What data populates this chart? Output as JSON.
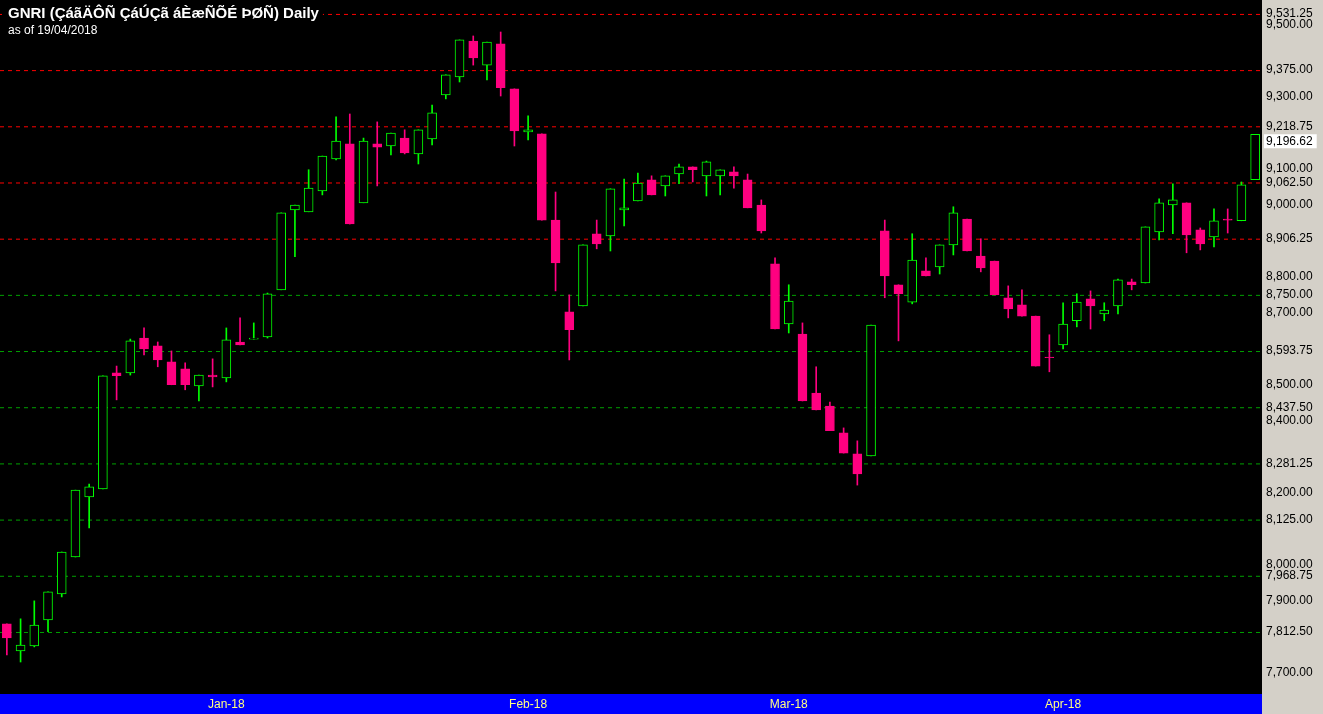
{
  "chart_data": {
    "type": "candlestick",
    "title": "GNRI (ÇáãÄÔÑ ÇáÚÇã áÈæÑÕÉ ÞØÑ) Daily",
    "subtitle": "as of 19/04/2018",
    "categories": [
      null,
      null,
      null,
      null,
      null,
      null,
      null,
      null,
      null,
      null,
      null,
      null,
      null,
      null,
      null,
      null,
      "Jan-18",
      null,
      null,
      null,
      null,
      null,
      null,
      null,
      null,
      null,
      null,
      null,
      null,
      null,
      null,
      null,
      null,
      null,
      null,
      null,
      null,
      null,
      "Feb-18",
      null,
      null,
      null,
      null,
      null,
      null,
      null,
      null,
      null,
      null,
      null,
      null,
      null,
      null,
      null,
      null,
      null,
      null,
      "Mar-18",
      null,
      null,
      null,
      null,
      null,
      null,
      null,
      null,
      null,
      null,
      null,
      null,
      null,
      null,
      null,
      null,
      null,
      null,
      null,
      "Apr-18",
      null,
      null,
      null,
      null,
      null,
      null,
      null,
      null,
      null,
      null,
      null,
      null,
      null,
      null
    ],
    "ohlc": [
      [
        7835,
        7835,
        7749,
        7796
      ],
      [
        7760,
        7849,
        7729,
        7776
      ],
      [
        7774,
        7899,
        7771,
        7832
      ],
      [
        7846,
        7924,
        7813,
        7924
      ],
      [
        7918,
        8035,
        7910,
        8035
      ],
      [
        8021,
        8207,
        8021,
        8207
      ],
      [
        8188,
        8224,
        8102,
        8216
      ],
      [
        8210,
        8525,
        8210,
        8525
      ],
      [
        8533,
        8552,
        8458,
        8525
      ],
      [
        8533,
        8627,
        8527,
        8622
      ],
      [
        8630,
        8658,
        8583,
        8600
      ],
      [
        8608,
        8619,
        8550,
        8569
      ],
      [
        8564,
        8594,
        8500,
        8500
      ],
      [
        8544,
        8561,
        8486,
        8500
      ],
      [
        8497,
        8527,
        8455,
        8527
      ],
      [
        8527,
        8572,
        8494,
        8522
      ],
      [
        8519,
        8658,
        8508,
        8625
      ],
      [
        8619,
        8686,
        8611,
        8611
      ],
      [
        8627,
        8672,
        8627,
        8630
      ],
      [
        8633,
        8755,
        8630,
        8753
      ],
      [
        8764,
        8978,
        8764,
        8978
      ],
      [
        8986,
        9000,
        8856,
        9000
      ],
      [
        8981,
        9098,
        8981,
        9047
      ],
      [
        9039,
        9136,
        9028,
        9136
      ],
      [
        9128,
        9245,
        9125,
        9178
      ],
      [
        9170,
        9253,
        8947,
        8947
      ],
      [
        9006,
        9186,
        9006,
        9178
      ],
      [
        9170,
        9231,
        9053,
        9161
      ],
      [
        9164,
        9200,
        9139,
        9200
      ],
      [
        9186,
        9209,
        9142,
        9145
      ],
      [
        9142,
        9209,
        9114,
        9209
      ],
      [
        9184,
        9278,
        9167,
        9256
      ],
      [
        9306,
        9362,
        9295,
        9362
      ],
      [
        9356,
        9459,
        9342,
        9459
      ],
      [
        9456,
        9470,
        9389,
        9409
      ],
      [
        9389,
        9453,
        9348,
        9453
      ],
      [
        9448,
        9481,
        9303,
        9326
      ],
      [
        9323,
        9323,
        9164,
        9206
      ],
      [
        9203,
        9248,
        9181,
        9209
      ],
      [
        9198,
        9198,
        8958,
        8958
      ],
      [
        8958,
        9036,
        8761,
        8839
      ],
      [
        8703,
        8750,
        8569,
        8653
      ],
      [
        8719,
        8889,
        8719,
        8889
      ],
      [
        8920,
        8958,
        8878,
        8892
      ],
      [
        8914,
        9045,
        8872,
        9045
      ],
      [
        8986,
        9072,
        8942,
        8992
      ],
      [
        9011,
        9089,
        9011,
        9061
      ],
      [
        9070,
        9081,
        9028,
        9028
      ],
      [
        9053,
        9081,
        9025,
        9081
      ],
      [
        9086,
        9114,
        9059,
        9106
      ],
      [
        9106,
        9106,
        9064,
        9098
      ],
      [
        9081,
        9122,
        9025,
        9120
      ],
      [
        9081,
        9098,
        9028,
        9098
      ],
      [
        9092,
        9106,
        9047,
        9081
      ],
      [
        9070,
        9086,
        8992,
        8992
      ],
      [
        9000,
        9014,
        8922,
        8928
      ],
      [
        8836,
        8853,
        8655,
        8655
      ],
      [
        8669,
        8778,
        8644,
        8733
      ],
      [
        8641,
        8672,
        8455,
        8455
      ],
      [
        8477,
        8550,
        8430,
        8430
      ],
      [
        8441,
        8452,
        8372,
        8372
      ],
      [
        8366,
        8380,
        8310,
        8310
      ],
      [
        8308,
        8344,
        8221,
        8252
      ],
      [
        8302,
        8666,
        8302,
        8666
      ],
      [
        8928,
        8958,
        8742,
        8803
      ],
      [
        8778,
        8778,
        8622,
        8753
      ],
      [
        8730,
        8920,
        8725,
        8847
      ],
      [
        8817,
        8853,
        8803,
        8803
      ],
      [
        8828,
        8889,
        8808,
        8889
      ],
      [
        8889,
        8995,
        8861,
        8978
      ],
      [
        8961,
        8961,
        8872,
        8872
      ],
      [
        8858,
        8906,
        8814,
        8825
      ],
      [
        8844,
        8844,
        8750,
        8750
      ],
      [
        8742,
        8775,
        8686,
        8711
      ],
      [
        8722,
        8764,
        8691,
        8691
      ],
      [
        8691,
        8691,
        8552,
        8552
      ],
      [
        8577,
        8639,
        8536,
        8575
      ],
      [
        8611,
        8728,
        8600,
        8669
      ],
      [
        8678,
        8753,
        8661,
        8730
      ],
      [
        8739,
        8761,
        8655,
        8719
      ],
      [
        8697,
        8728,
        8678,
        8708
      ],
      [
        8719,
        8794,
        8697,
        8792
      ],
      [
        8786,
        8794,
        8764,
        8778
      ],
      [
        8783,
        8939,
        8783,
        8939
      ],
      [
        8925,
        9017,
        8903,
        9006
      ],
      [
        9000,
        9059,
        8920,
        9014
      ],
      [
        9006,
        9006,
        8867,
        8917
      ],
      [
        8931,
        8936,
        8875,
        8892
      ],
      [
        8911,
        8989,
        8883,
        8956
      ],
      [
        8961,
        8989,
        8922,
        8958
      ],
      [
        8956,
        9064,
        8956,
        9056
      ],
      [
        9070,
        9196.62,
        9070,
        9196.62
      ]
    ],
    "colors": [
      "#ff0080",
      "#00ff00",
      "#00ff00",
      "#00ff00",
      "#00ff00",
      "#00ff00",
      "#00ff00",
      "#00ff00",
      "#ff0080",
      "#00ff00",
      "#ff0080",
      "#ff0080",
      "#ff0080",
      "#ff0080",
      "#00ff00",
      "#ff0080",
      "#00ff00",
      "#ff0080",
      "#00ff00",
      "#00ff00",
      "#00ff00",
      "#00ff00",
      "#00ff00",
      "#00ff00",
      "#00ff00",
      "#ff0080",
      "#00ff00",
      "#ff0080",
      "#00ff00",
      "#ff0080",
      "#00ff00",
      "#00ff00",
      "#00ff00",
      "#00ff00",
      "#ff0080",
      "#00ff00",
      "#ff0080",
      "#ff0080",
      "#00ff00",
      "#ff0080",
      "#ff0080",
      "#ff0080",
      "#00ff00",
      "#ff0080",
      "#00ff00",
      "#00ff00",
      "#00ff00",
      "#ff0080",
      "#00ff00",
      "#00ff00",
      "#ff0080",
      "#00ff00",
      "#00ff00",
      "#ff0080",
      "#ff0080",
      "#ff0080",
      "#ff0080",
      "#00ff00",
      "#ff0080",
      "#ff0080",
      "#ff0080",
      "#ff0080",
      "#ff0080",
      "#00ff00",
      "#ff0080",
      "#ff0080",
      "#00ff00",
      "#ff0080",
      "#00ff00",
      "#00ff00",
      "#ff0080",
      "#ff0080",
      "#ff0080",
      "#ff0080",
      "#ff0080",
      "#ff0080",
      "#ff0080",
      "#00ff00",
      "#00ff00",
      "#ff0080",
      "#00ff00",
      "#00ff00",
      "#ff0080",
      "#00ff00",
      "#00ff00",
      "#00ff00",
      "#ff0080",
      "#ff0080",
      "#00ff00",
      "#ff0080",
      "#00ff00",
      "#00ff00"
    ],
    "ylim": [
      7640,
      9570
    ],
    "yticks": [
      {
        "value": 7700,
        "label": "7,700.00"
      },
      {
        "value": 7900,
        "label": "7,900.00"
      },
      {
        "value": 8000,
        "label": "8,000.00"
      },
      {
        "value": 8200,
        "label": "8,200.00"
      },
      {
        "value": 8400,
        "label": "8,400.00"
      },
      {
        "value": 8500,
        "label": "8,500.00"
      },
      {
        "value": 8700,
        "label": "8,700.00"
      },
      {
        "value": 8800,
        "label": "8,800.00"
      },
      {
        "value": 9000,
        "label": "9,000.00"
      },
      {
        "value": 9100,
        "label": "9,100.00"
      },
      {
        "value": 9300,
        "label": "9,300.00"
      },
      {
        "value": 9500,
        "label": "9,500.00"
      }
    ],
    "ref_lines": [
      {
        "axis": "y",
        "value": 9531.25,
        "label": "9,531.25",
        "color": "#ff0000",
        "line_style": "dashed"
      },
      {
        "axis": "y",
        "value": 9375,
        "label": "9,375.00",
        "color": "#ff0000",
        "line_style": "dashed"
      },
      {
        "axis": "y",
        "value": 9218.75,
        "label": "9,218.75",
        "color": "#ff0000",
        "line_style": "dashed"
      },
      {
        "axis": "y",
        "value": 9062.5,
        "label": "9,062.50",
        "color": "#ff0000",
        "line_style": "dashed"
      },
      {
        "axis": "y",
        "value": 8906.25,
        "label": "8,906.25",
        "color": "#ff0000",
        "line_style": "dashed"
      },
      {
        "axis": "y",
        "value": 8750,
        "label": "8,750.00",
        "color": "#00a000",
        "line_style": "dashed"
      },
      {
        "axis": "y",
        "value": 8593.75,
        "label": "8,593.75",
        "color": "#00a000",
        "line_style": "dashed"
      },
      {
        "axis": "y",
        "value": 8437.5,
        "label": "8,437.50",
        "color": "#00a000",
        "line_style": "dashed"
      },
      {
        "axis": "y",
        "value": 8281.25,
        "label": "8,281.25",
        "color": "#00a000",
        "line_style": "dashed"
      },
      {
        "axis": "y",
        "value": 8125,
        "label": "8,125.00",
        "color": "#00a000",
        "line_style": "dashed"
      },
      {
        "axis": "y",
        "value": 7968.75,
        "label": "7,968.75",
        "color": "#00a000",
        "line_style": "dashed"
      },
      {
        "axis": "y",
        "value": 7812.5,
        "label": "7,812.50",
        "color": "#00a000",
        "line_style": "dashed"
      }
    ],
    "annotations": [
      "9,196.62"
    ]
  }
}
